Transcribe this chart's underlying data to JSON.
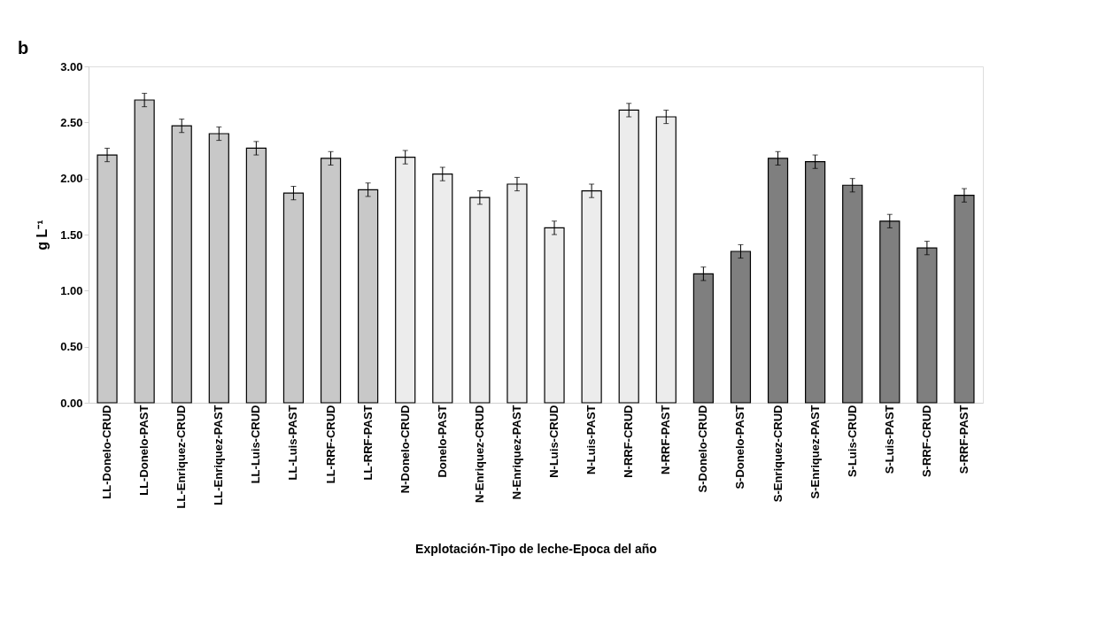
{
  "chart_data": {
    "type": "bar",
    "xlabel": "Explotación-Tipo de leche-Epoca del año",
    "ylabel": "g L⁻¹",
    "annotations": [
      "b"
    ],
    "categories": [
      "LL-Donelo-CRUD",
      "LL-Donelo-PAST",
      "LL-Enriquez-CRUD",
      "LL-Enriquez-PAST",
      "LL-Luis-CRUD",
      "LL-Luis-PAST",
      "LL-RRF-CRUD",
      "LL-RRF-PAST",
      "N-Donelo-CRUD",
      "Donelo-PAST",
      "N-Enriquez-CRUD",
      "N-Enriquez-PAST",
      "N-Luis-CRUD",
      "N-Luis-PAST",
      "N-RRF-CRUD",
      "N-RRF-PAST",
      "S-Donelo-CRUD",
      "S-Donelo-PAST",
      "S-Enriquez-CRUD",
      "S-Enriquez-PAST",
      "S-Luis-CRUD",
      "S-Luis-PAST",
      "S-RRF-CRUD",
      "S-RRF-PAST"
    ],
    "values": [
      2.21,
      2.7,
      2.47,
      2.4,
      2.27,
      1.87,
      2.18,
      1.9,
      2.19,
      2.04,
      1.83,
      1.95,
      1.56,
      1.89,
      2.61,
      2.55,
      1.15,
      1.35,
      2.18,
      2.15,
      1.94,
      1.62,
      1.38,
      1.85
    ],
    "errors": [
      0.06,
      0.06,
      0.06,
      0.06,
      0.06,
      0.06,
      0.06,
      0.06,
      0.06,
      0.06,
      0.06,
      0.06,
      0.06,
      0.06,
      0.06,
      0.06,
      0.06,
      0.06,
      0.06,
      0.06,
      0.06,
      0.06,
      0.06,
      0.06
    ],
    "colors": [
      "#c8c8c8",
      "#c8c8c8",
      "#c8c8c8",
      "#c8c8c8",
      "#c8c8c8",
      "#c8c8c8",
      "#c8c8c8",
      "#c8c8c8",
      "#ececec",
      "#ececec",
      "#ececec",
      "#ececec",
      "#ececec",
      "#ececec",
      "#ececec",
      "#ececec",
      "#7f7f7f",
      "#7f7f7f",
      "#7f7f7f",
      "#7f7f7f",
      "#7f7f7f",
      "#7f7f7f",
      "#7f7f7f",
      "#7f7f7f"
    ],
    "ylim": [
      0,
      3
    ],
    "yticks": [
      {
        "value": 0,
        "label": "0.00"
      },
      {
        "value": 0.5,
        "label": "0.50"
      },
      {
        "value": 1,
        "label": "1.00"
      },
      {
        "value": 1.5,
        "label": "1.50"
      },
      {
        "value": 2,
        "label": "2.00"
      },
      {
        "value": 2.5,
        "label": "2.50"
      },
      {
        "value": 3,
        "label": "3.00"
      }
    ],
    "grid": false
  }
}
